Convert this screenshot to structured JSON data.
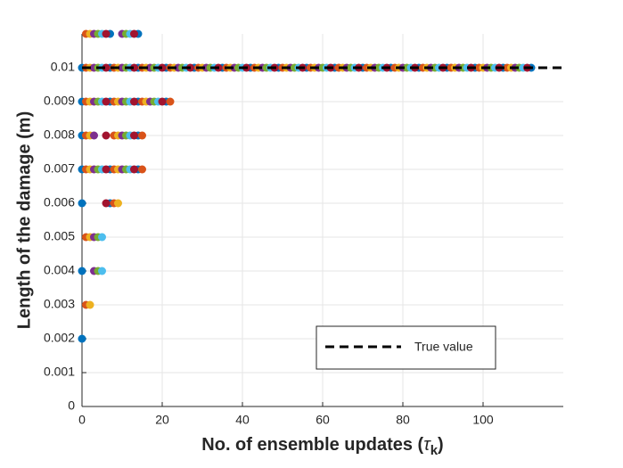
{
  "chart_data": {
    "type": "scatter",
    "xlabel": {
      "text": "No. of ensemble updates (",
      "symbol": "τ",
      "sub": "k",
      "end": ")"
    },
    "ylabel": "Length of the damage (m)",
    "xlim": [
      0,
      120
    ],
    "xticks": [
      0,
      20,
      40,
      60,
      80,
      100
    ],
    "ylim": [
      0,
      0.011
    ],
    "yticks": [
      0,
      0.001,
      0.002,
      0.003,
      0.004,
      0.005,
      0.006,
      0.007,
      0.008,
      0.009,
      0.01
    ],
    "grid": true,
    "legend_position": "lower right",
    "reference_line": {
      "name": "True value",
      "value": 0.01,
      "color": "#000000"
    },
    "series": [
      {
        "color": "#0072BD",
        "x": [
          7,
          14,
          0,
          7,
          14,
          21,
          28,
          35,
          42,
          49,
          56,
          63,
          70,
          77,
          84,
          91,
          98,
          105,
          112,
          0,
          7,
          14,
          21,
          0,
          14,
          0,
          7,
          14,
          0,
          7,
          0,
          0
        ],
        "values": [
          0.011,
          0.011,
          0.01,
          0.01,
          0.01,
          0.01,
          0.01,
          0.01,
          0.01,
          0.01,
          0.01,
          0.01,
          0.01,
          0.01,
          0.01,
          0.01,
          0.01,
          0.01,
          0.01,
          0.009,
          0.009,
          0.009,
          0.009,
          0.008,
          0.008,
          0.007,
          0.007,
          0.007,
          0.006,
          0.006,
          0.004,
          0.002
        ]
      },
      {
        "color": "#D95319",
        "x": [
          1,
          1,
          8,
          15,
          22,
          29,
          36,
          43,
          50,
          57,
          64,
          71,
          78,
          85,
          92,
          99,
          106,
          1,
          8,
          15,
          22,
          1,
          8,
          15,
          1,
          8,
          15,
          8,
          1,
          1
        ],
        "values": [
          0.011,
          0.01,
          0.01,
          0.01,
          0.01,
          0.01,
          0.01,
          0.01,
          0.01,
          0.01,
          0.01,
          0.01,
          0.01,
          0.01,
          0.01,
          0.01,
          0.01,
          0.009,
          0.009,
          0.009,
          0.009,
          0.008,
          0.008,
          0.008,
          0.007,
          0.007,
          0.007,
          0.006,
          0.005,
          0.003
        ]
      },
      {
        "color": "#EDB120",
        "x": [
          2,
          2,
          9,
          16,
          23,
          30,
          37,
          44,
          51,
          58,
          65,
          72,
          79,
          86,
          93,
          100,
          107,
          2,
          9,
          16,
          2,
          9,
          2,
          9,
          9,
          2,
          2
        ],
        "values": [
          0.011,
          0.01,
          0.01,
          0.01,
          0.01,
          0.01,
          0.01,
          0.01,
          0.01,
          0.01,
          0.01,
          0.01,
          0.01,
          0.01,
          0.01,
          0.01,
          0.01,
          0.009,
          0.009,
          0.009,
          0.008,
          0.008,
          0.007,
          0.007,
          0.006,
          0.005,
          0.003
        ]
      },
      {
        "color": "#7E2F8E",
        "x": [
          3,
          10,
          3,
          10,
          17,
          24,
          31,
          38,
          45,
          52,
          59,
          66,
          73,
          80,
          87,
          94,
          101,
          108,
          3,
          10,
          17,
          3,
          10,
          3,
          10,
          3,
          3
        ],
        "values": [
          0.011,
          0.011,
          0.01,
          0.01,
          0.01,
          0.01,
          0.01,
          0.01,
          0.01,
          0.01,
          0.01,
          0.01,
          0.01,
          0.01,
          0.01,
          0.01,
          0.01,
          0.01,
          0.009,
          0.009,
          0.009,
          0.008,
          0.008,
          0.007,
          0.007,
          0.005,
          0.004
        ]
      },
      {
        "color": "#77AC30",
        "x": [
          4,
          11,
          4,
          11,
          18,
          25,
          32,
          39,
          46,
          53,
          60,
          67,
          74,
          81,
          88,
          95,
          102,
          109,
          4,
          11,
          18,
          11,
          4,
          11,
          4,
          4
        ],
        "values": [
          0.011,
          0.011,
          0.01,
          0.01,
          0.01,
          0.01,
          0.01,
          0.01,
          0.01,
          0.01,
          0.01,
          0.01,
          0.01,
          0.01,
          0.01,
          0.01,
          0.01,
          0.01,
          0.009,
          0.009,
          0.009,
          0.008,
          0.007,
          0.007,
          0.005,
          0.004
        ]
      },
      {
        "color": "#4DBEEE",
        "x": [
          5,
          12,
          5,
          12,
          19,
          26,
          33,
          40,
          47,
          54,
          61,
          68,
          75,
          82,
          89,
          96,
          103,
          110,
          5,
          12,
          19,
          12,
          5,
          12,
          5,
          5
        ],
        "values": [
          0.011,
          0.011,
          0.01,
          0.01,
          0.01,
          0.01,
          0.01,
          0.01,
          0.01,
          0.01,
          0.01,
          0.01,
          0.01,
          0.01,
          0.01,
          0.01,
          0.01,
          0.01,
          0.009,
          0.009,
          0.009,
          0.008,
          0.007,
          0.007,
          0.005,
          0.004
        ]
      },
      {
        "color": "#A2142F",
        "x": [
          6,
          13,
          6,
          13,
          20,
          27,
          34,
          41,
          48,
          55,
          62,
          69,
          76,
          83,
          90,
          97,
          104,
          111,
          6,
          13,
          20,
          6,
          13,
          6,
          13,
          6
        ],
        "values": [
          0.011,
          0.011,
          0.01,
          0.01,
          0.01,
          0.01,
          0.01,
          0.01,
          0.01,
          0.01,
          0.01,
          0.01,
          0.01,
          0.01,
          0.01,
          0.01,
          0.01,
          0.01,
          0.009,
          0.009,
          0.009,
          0.008,
          0.008,
          0.007,
          0.007,
          0.006
        ]
      }
    ]
  }
}
